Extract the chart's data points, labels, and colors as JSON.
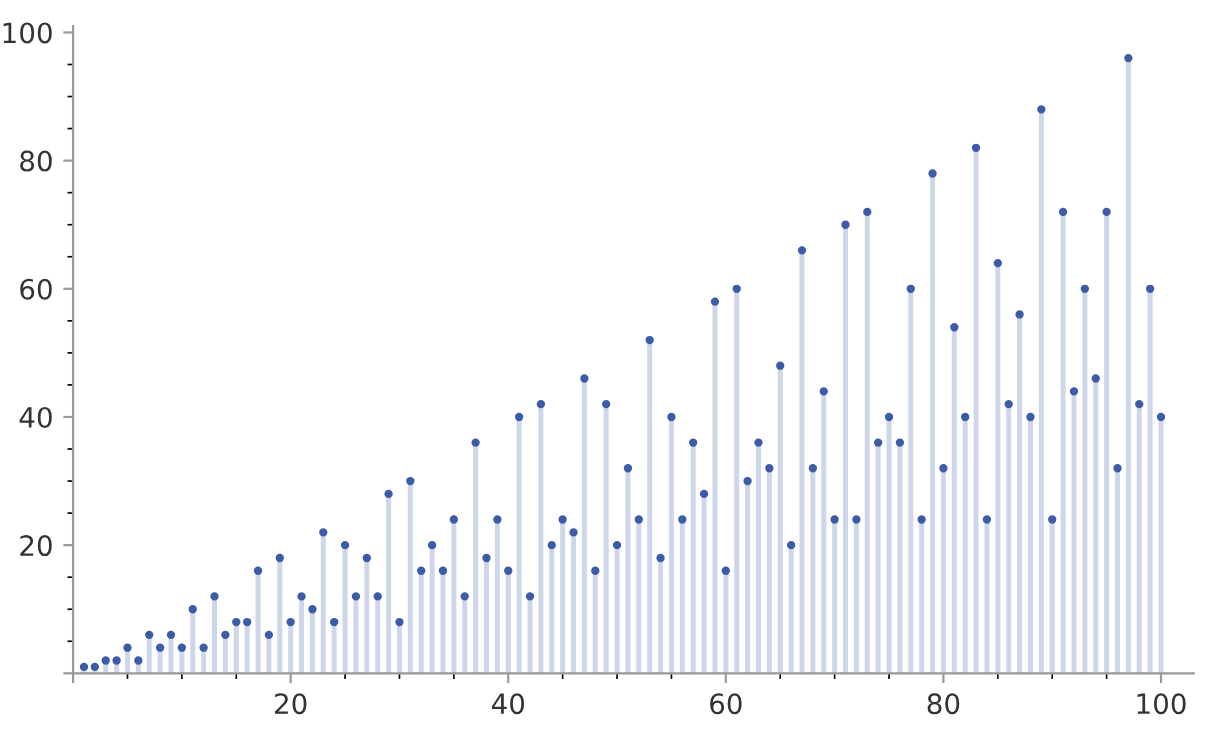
{
  "chart_data": {
    "type": "lollipop",
    "x": [
      1,
      2,
      3,
      4,
      5,
      6,
      7,
      8,
      9,
      10,
      11,
      12,
      13,
      14,
      15,
      16,
      17,
      18,
      19,
      20,
      21,
      22,
      23,
      24,
      25,
      26,
      27,
      28,
      29,
      30,
      31,
      32,
      33,
      34,
      35,
      36,
      37,
      38,
      39,
      40,
      41,
      42,
      43,
      44,
      45,
      46,
      47,
      48,
      49,
      50,
      51,
      52,
      53,
      54,
      55,
      56,
      57,
      58,
      59,
      60,
      61,
      62,
      63,
      64,
      65,
      66,
      67,
      68,
      69,
      70,
      71,
      72,
      73,
      74,
      75,
      76,
      77,
      78,
      79,
      80,
      81,
      82,
      83,
      84,
      85,
      86,
      87,
      88,
      89,
      90,
      91,
      92,
      93,
      94,
      95,
      96,
      97,
      98,
      99,
      100
    ],
    "series": [
      {
        "color": "#3d5ca8",
        "values": [
          1,
          1,
          2,
          2,
          4,
          2,
          6,
          4,
          6,
          4,
          10,
          4,
          12,
          6,
          8,
          8,
          16,
          6,
          18,
          8,
          12,
          10,
          22,
          8,
          20,
          12,
          18,
          12,
          28,
          8,
          30,
          16,
          20,
          16,
          24,
          12,
          36,
          18,
          24,
          16,
          40,
          12,
          42,
          20,
          24,
          22,
          46,
          16,
          42,
          20,
          32,
          24,
          52,
          18,
          40,
          24,
          36,
          28,
          58,
          16,
          60,
          30,
          36,
          32,
          48,
          20,
          66,
          32,
          44,
          24,
          70,
          24,
          72,
          36,
          40,
          36,
          60,
          24,
          78,
          32,
          54,
          40,
          82,
          24,
          64,
          42,
          56,
          40,
          88,
          24,
          72,
          44,
          60,
          46,
          72,
          32,
          96,
          42,
          60,
          40
        ]
      }
    ],
    "xlim": [
      0,
      103
    ],
    "ylim": [
      0,
      101
    ],
    "xticks": [
      {
        "value": 0,
        "label": null
      },
      20,
      40,
      60,
      80,
      100
    ],
    "yticks": [
      {
        "value": 0,
        "label": null
      },
      20,
      40,
      60,
      80,
      100
    ],
    "grid": false,
    "marker": "circle"
  }
}
